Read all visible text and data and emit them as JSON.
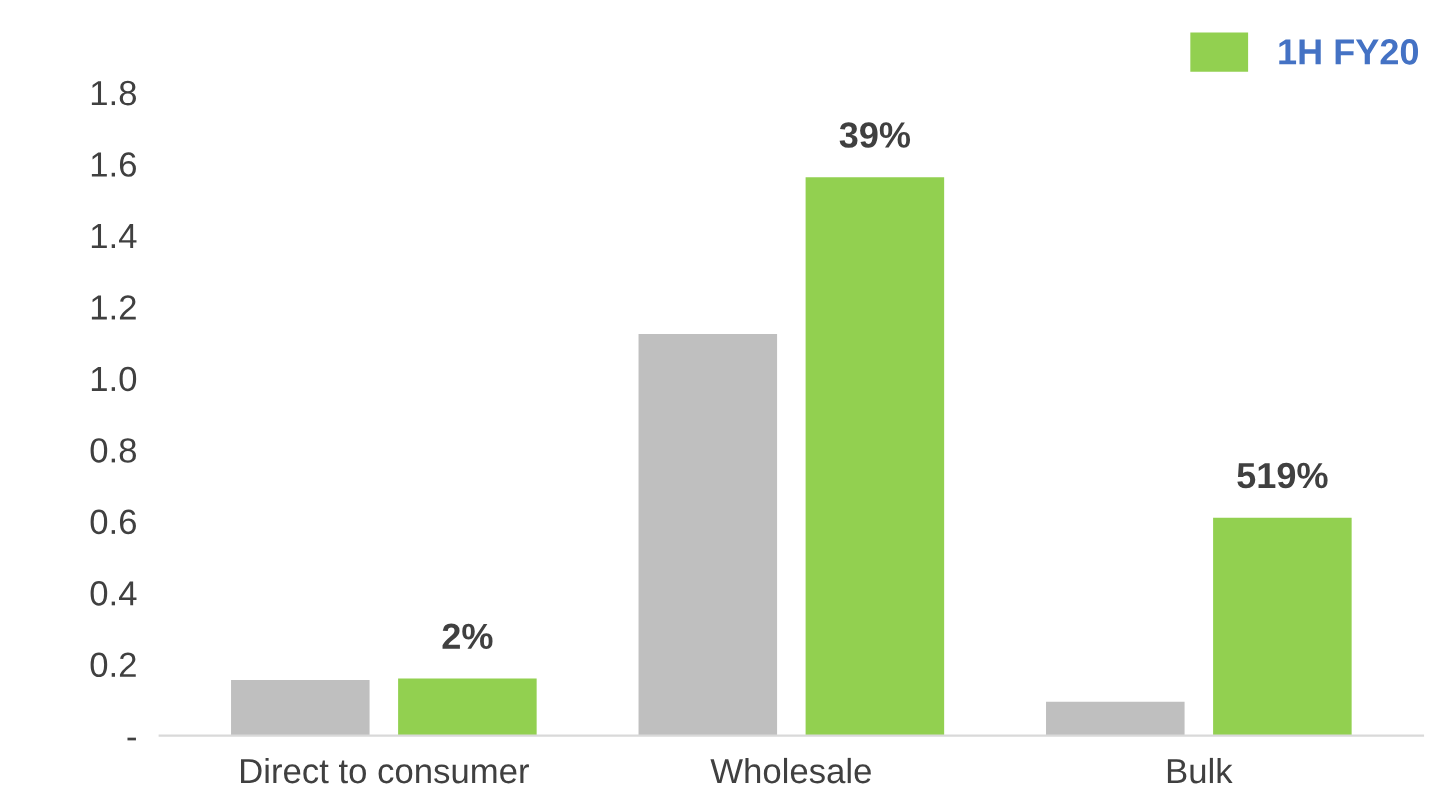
{
  "chart_data": {
    "type": "bar",
    "categories": [
      "Direct to consumer",
      "Wholesale",
      "Bulk"
    ],
    "series": [
      {
        "color": "#bfbfbf",
        "values": [
          0.156,
          1.124,
          0.095
        ]
      },
      {
        "name": "1H FY20",
        "color": "#92d050",
        "values": [
          0.16,
          1.563,
          0.61
        ]
      }
    ],
    "annotations": [
      "2%",
      "39%",
      "519%"
    ],
    "ylim": [
      0,
      1.8
    ],
    "yticks": [
      {
        "value": 0,
        "label": "-"
      },
      0.2,
      0.4,
      0.6,
      0.8,
      {
        "value": 1.0,
        "label": "1.0"
      },
      1.2,
      1.4,
      1.6,
      1.8
    ],
    "grid": false,
    "legend": "top right"
  }
}
